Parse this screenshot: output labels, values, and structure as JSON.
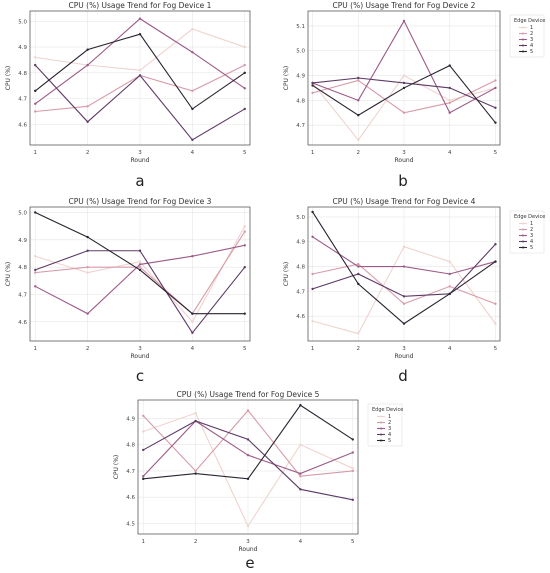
{
  "chart_data": [
    {
      "type": "line",
      "panel_label": "a",
      "title": "CPU (%) Usage Trend for Fog Device 1",
      "xlabel": "Round",
      "ylabel": "CPU (%)",
      "x": [
        1,
        2,
        3,
        4,
        5
      ],
      "xlim": [
        0.9,
        5.1
      ],
      "ylim": [
        4.52,
        5.04
      ],
      "yticks": [
        4.6,
        4.7,
        4.8,
        4.9,
        5.0
      ],
      "ytick_labels": [
        "4.6",
        "4.7",
        "4.8",
        "4.9",
        "5.0"
      ],
      "grid": true,
      "legend": null,
      "series": [
        {
          "values": [
            4.86,
            4.83,
            4.81,
            4.97,
            4.9
          ],
          "color": "#efd3cf"
        },
        {
          "values": [
            4.65,
            4.67,
            4.79,
            4.73,
            4.83
          ],
          "color": "#d79aa8"
        },
        {
          "values": [
            4.68,
            4.83,
            5.01,
            4.88,
            4.74
          ],
          "color": "#9c5a86"
        },
        {
          "values": [
            4.83,
            4.61,
            4.79,
            4.54,
            4.66
          ],
          "color": "#5e3a66"
        },
        {
          "values": [
            4.73,
            4.89,
            4.95,
            4.66,
            4.8
          ],
          "color": "#2a2330"
        }
      ]
    },
    {
      "type": "line",
      "panel_label": "b",
      "title": "CPU (%) Usage Trend for Fog Device 2",
      "xlabel": "Round",
      "ylabel": "CPU (%)",
      "x": [
        1,
        2,
        3,
        4,
        5
      ],
      "xlim": [
        0.9,
        5.1
      ],
      "ylim": [
        4.62,
        5.16
      ],
      "yticks": [
        4.7,
        4.8,
        4.9,
        5.0,
        5.1
      ],
      "ytick_labels": [
        "4.7",
        "4.8",
        "4.9",
        "5.0",
        "5.1"
      ],
      "grid": true,
      "legend": {
        "title": "Edge Device",
        "entries": [
          "1",
          "2",
          "3",
          "4",
          "5"
        ],
        "placement": "outside-right"
      },
      "series": [
        {
          "name": "1",
          "values": [
            4.87,
            4.64,
            4.9,
            4.8,
            4.85
          ],
          "color": "#efd3cf"
        },
        {
          "name": "2",
          "values": [
            4.83,
            4.88,
            4.75,
            4.79,
            4.88
          ],
          "color": "#d79aa8"
        },
        {
          "name": "3",
          "values": [
            4.87,
            4.8,
            5.12,
            4.75,
            4.85
          ],
          "color": "#9c5a86"
        },
        {
          "name": "4",
          "values": [
            4.87,
            4.89,
            4.87,
            4.85,
            4.77
          ],
          "color": "#5e3a66"
        },
        {
          "name": "5",
          "values": [
            4.86,
            4.74,
            4.85,
            4.94,
            4.71
          ],
          "color": "#2a2330"
        }
      ]
    },
    {
      "type": "line",
      "panel_label": "c",
      "title": "CPU (%) Usage Trend for Fog Device 3",
      "xlabel": "Round",
      "ylabel": "CPU (%)",
      "x": [
        1,
        2,
        3,
        4,
        5
      ],
      "xlim": [
        0.9,
        5.1
      ],
      "ylim": [
        4.53,
        5.02
      ],
      "yticks": [
        4.6,
        4.7,
        4.8,
        4.9,
        5.0
      ],
      "ytick_labels": [
        "4.6",
        "4.7",
        "4.8",
        "4.9",
        "5.0"
      ],
      "grid": true,
      "legend": null,
      "series": [
        {
          "values": [
            4.84,
            4.78,
            4.82,
            4.6,
            4.95
          ],
          "color": "#efd3cf"
        },
        {
          "values": [
            4.78,
            4.8,
            4.8,
            4.63,
            4.93
          ],
          "color": "#d79aa8"
        },
        {
          "values": [
            4.73,
            4.63,
            4.81,
            4.84,
            4.88
          ],
          "color": "#9c5a86"
        },
        {
          "values": [
            4.79,
            4.86,
            4.86,
            4.56,
            4.8
          ],
          "color": "#5e3a66"
        },
        {
          "values": [
            5.0,
            4.91,
            4.79,
            4.63,
            4.63
          ],
          "color": "#2a2330"
        }
      ]
    },
    {
      "type": "line",
      "panel_label": "d",
      "title": "CPU (%) Usage Trend for Fog Device 4",
      "xlabel": "Round",
      "ylabel": "CPU (%)",
      "x": [
        1,
        2,
        3,
        4,
        5
      ],
      "xlim": [
        0.9,
        5.1
      ],
      "ylim": [
        4.5,
        5.04
      ],
      "yticks": [
        4.6,
        4.7,
        4.8,
        4.9,
        5.0
      ],
      "ytick_labels": [
        "4.6",
        "4.7",
        "4.8",
        "4.9",
        "5.0"
      ],
      "grid": true,
      "legend": {
        "title": "Edge Device",
        "entries": [
          "1",
          "2",
          "3",
          "4",
          "5"
        ],
        "placement": "outside-right"
      },
      "series": [
        {
          "name": "1",
          "values": [
            4.58,
            4.53,
            4.88,
            4.82,
            4.57
          ],
          "color": "#efd3cf"
        },
        {
          "name": "2",
          "values": [
            4.77,
            4.81,
            4.65,
            4.72,
            4.65
          ],
          "color": "#d79aa8"
        },
        {
          "name": "3",
          "values": [
            4.92,
            4.8,
            4.8,
            4.77,
            4.82
          ],
          "color": "#9c5a86"
        },
        {
          "name": "4",
          "values": [
            4.71,
            4.77,
            4.68,
            4.69,
            4.89
          ],
          "color": "#5e3a66"
        },
        {
          "name": "5",
          "values": [
            5.02,
            4.73,
            4.57,
            4.69,
            4.82
          ],
          "color": "#2a2330"
        }
      ]
    },
    {
      "type": "line",
      "panel_label": "e",
      "title": "CPU (%) Usage Trend for Fog Device 5",
      "xlabel": "Round",
      "ylabel": "CPU (%)",
      "x": [
        1,
        2,
        3,
        4,
        5
      ],
      "xlim": [
        0.9,
        5.1
      ],
      "ylim": [
        4.46,
        4.97
      ],
      "yticks": [
        4.5,
        4.6,
        4.7,
        4.8,
        4.9
      ],
      "ytick_labels": [
        "4.5",
        "4.6",
        "4.7",
        "4.8",
        "4.9"
      ],
      "grid": true,
      "legend": {
        "title": "Edge Device",
        "entries": [
          "1",
          "2",
          "3",
          "4",
          "5"
        ],
        "placement": "outside-right"
      },
      "series": [
        {
          "name": "1",
          "values": [
            4.85,
            4.92,
            4.49,
            4.8,
            4.71
          ],
          "color": "#efd3cf"
        },
        {
          "name": "2",
          "values": [
            4.91,
            4.7,
            4.93,
            4.68,
            4.7
          ],
          "color": "#d79aa8"
        },
        {
          "name": "3",
          "values": [
            4.68,
            4.89,
            4.76,
            4.69,
            4.77
          ],
          "color": "#9c5a86"
        },
        {
          "name": "4",
          "values": [
            4.78,
            4.89,
            4.82,
            4.63,
            4.59
          ],
          "color": "#5e3a66"
        },
        {
          "name": "5",
          "values": [
            4.67,
            4.69,
            4.67,
            4.95,
            4.82
          ],
          "color": "#2a2330"
        }
      ]
    }
  ]
}
